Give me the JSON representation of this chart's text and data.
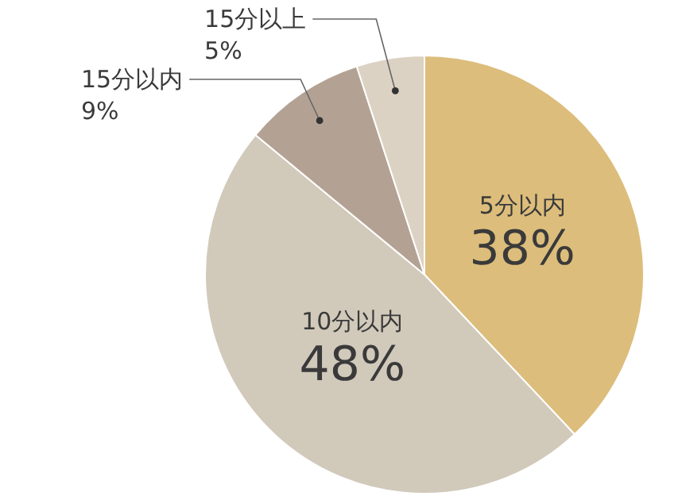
{
  "chart_data": {
    "type": "pie",
    "categories": [
      "5分以内",
      "10分以内",
      "15分以内",
      "15分以上"
    ],
    "values": [
      38,
      48,
      9,
      5
    ],
    "colors": [
      "#dcbd7b",
      "#d1c9ba",
      "#b3a293",
      "#dcd2c3"
    ],
    "value_labels": [
      "38%",
      "48%",
      "9%",
      "5%"
    ]
  }
}
